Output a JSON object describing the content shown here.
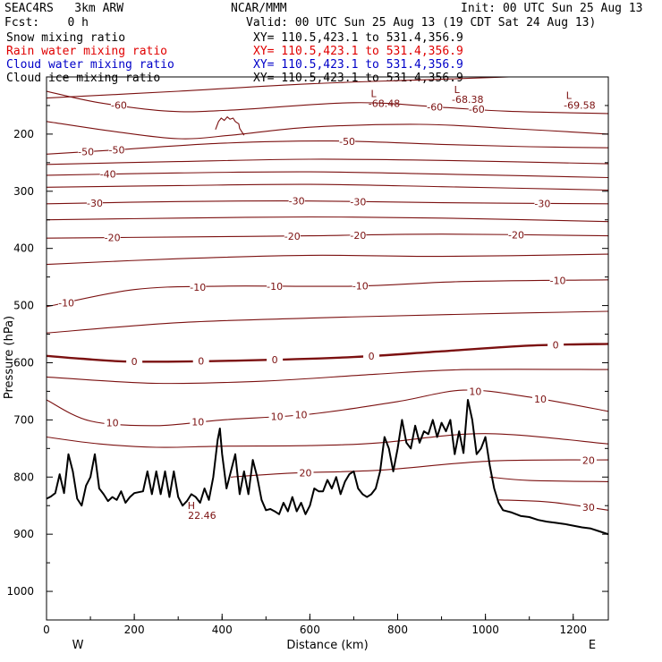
{
  "header": {
    "model": "SEAC4RS   3km ARW",
    "org": "NCAR/MMM",
    "init": "Init: 00 UTC Sun 25 Aug 13",
    "fcst": "Fcst:    0 h",
    "valid": "Valid: 00 UTC Sun 25 Aug 13 (19 CDT Sat 24 Aug 13)"
  },
  "legend": [
    {
      "label": "Snow mixing ratio",
      "xy": "XY= 110.5,423.1 to 531.4,356.9",
      "color": "#000000"
    },
    {
      "label": "Rain water mixing ratio",
      "xy": "XY= 110.5,423.1 to 531.4,356.9",
      "color": "#e00000"
    },
    {
      "label": "Cloud water mixing ratio",
      "xy": "XY= 110.5,423.1 to 531.4,356.9",
      "color": "#0000c8"
    },
    {
      "label": "Cloud ice mixing ratio",
      "xy": "XY= 110.5,423.1 to 531.4,356.9",
      "color": "#000000"
    }
  ],
  "chart_data": {
    "type": "line",
    "xlabel": "Distance (km)",
    "ylabel": "Pressure (hPa)",
    "xlim": [
      0,
      1280
    ],
    "ylim": [
      1050,
      100
    ],
    "xticks": [
      0,
      200,
      400,
      600,
      800,
      1000,
      1200
    ],
    "yticks": [
      200,
      300,
      400,
      500,
      600,
      700,
      800,
      900,
      1000
    ],
    "edge_labels": {
      "left": "W",
      "right": "E"
    },
    "contour_color": "#7b1010",
    "contour_interval": 5,
    "highs_lows": [
      {
        "symbol": "L",
        "value": "-68.48",
        "x": 745,
        "p": 135
      },
      {
        "symbol": "L",
        "value": "-68.38",
        "x": 935,
        "p": 128
      },
      {
        "symbol": "L",
        "value": "-69.58",
        "x": 1190,
        "p": 138
      },
      {
        "symbol": "H",
        "value": "22.46",
        "x": 330,
        "p": 856
      }
    ],
    "terrain": [
      [
        0,
        838
      ],
      [
        10,
        834
      ],
      [
        20,
        828
      ],
      [
        30,
        795
      ],
      [
        40,
        828
      ],
      [
        50,
        760
      ],
      [
        60,
        790
      ],
      [
        70,
        838
      ],
      [
        80,
        850
      ],
      [
        90,
        815
      ],
      [
        100,
        800
      ],
      [
        110,
        760
      ],
      [
        120,
        820
      ],
      [
        130,
        830
      ],
      [
        140,
        842
      ],
      [
        150,
        835
      ],
      [
        160,
        840
      ],
      [
        170,
        825
      ],
      [
        180,
        845
      ],
      [
        190,
        835
      ],
      [
        200,
        828
      ],
      [
        220,
        825
      ],
      [
        230,
        790
      ],
      [
        240,
        830
      ],
      [
        250,
        790
      ],
      [
        260,
        830
      ],
      [
        270,
        790
      ],
      [
        280,
        835
      ],
      [
        290,
        790
      ],
      [
        300,
        835
      ],
      [
        310,
        850
      ],
      [
        320,
        842
      ],
      [
        330,
        830
      ],
      [
        340,
        835
      ],
      [
        350,
        845
      ],
      [
        360,
        820
      ],
      [
        370,
        840
      ],
      [
        380,
        800
      ],
      [
        390,
        735
      ],
      [
        395,
        715
      ],
      [
        400,
        760
      ],
      [
        410,
        820
      ],
      [
        420,
        790
      ],
      [
        430,
        760
      ],
      [
        440,
        830
      ],
      [
        450,
        790
      ],
      [
        460,
        830
      ],
      [
        470,
        770
      ],
      [
        480,
        800
      ],
      [
        490,
        840
      ],
      [
        500,
        858
      ],
      [
        510,
        856
      ],
      [
        520,
        860
      ],
      [
        530,
        865
      ],
      [
        540,
        845
      ],
      [
        550,
        860
      ],
      [
        560,
        835
      ],
      [
        570,
        860
      ],
      [
        580,
        845
      ],
      [
        590,
        865
      ],
      [
        600,
        850
      ],
      [
        610,
        820
      ],
      [
        620,
        825
      ],
      [
        630,
        825
      ],
      [
        640,
        805
      ],
      [
        650,
        820
      ],
      [
        660,
        800
      ],
      [
        670,
        830
      ],
      [
        680,
        808
      ],
      [
        690,
        795
      ],
      [
        700,
        790
      ],
      [
        710,
        820
      ],
      [
        720,
        830
      ],
      [
        730,
        835
      ],
      [
        740,
        830
      ],
      [
        750,
        820
      ],
      [
        760,
        790
      ],
      [
        770,
        730
      ],
      [
        780,
        750
      ],
      [
        790,
        790
      ],
      [
        800,
        750
      ],
      [
        810,
        700
      ],
      [
        820,
        740
      ],
      [
        830,
        750
      ],
      [
        840,
        710
      ],
      [
        850,
        740
      ],
      [
        860,
        720
      ],
      [
        870,
        725
      ],
      [
        880,
        700
      ],
      [
        890,
        730
      ],
      [
        900,
        705
      ],
      [
        910,
        720
      ],
      [
        920,
        700
      ],
      [
        930,
        760
      ],
      [
        940,
        720
      ],
      [
        950,
        758
      ],
      [
        960,
        665
      ],
      [
        970,
        700
      ],
      [
        980,
        760
      ],
      [
        990,
        750
      ],
      [
        1000,
        730
      ],
      [
        1010,
        780
      ],
      [
        1020,
        820
      ],
      [
        1030,
        845
      ],
      [
        1040,
        858
      ],
      [
        1060,
        862
      ],
      [
        1080,
        868
      ],
      [
        1100,
        870
      ],
      [
        1120,
        875
      ],
      [
        1140,
        878
      ],
      [
        1160,
        880
      ],
      [
        1180,
        882
      ],
      [
        1200,
        885
      ],
      [
        1220,
        888
      ],
      [
        1240,
        890
      ],
      [
        1260,
        895
      ],
      [
        1280,
        900
      ]
    ],
    "bump": [
      [
        385,
        192
      ],
      [
        392,
        178
      ],
      [
        398,
        172
      ],
      [
        405,
        176
      ],
      [
        412,
        170
      ],
      [
        418,
        174
      ],
      [
        425,
        172
      ],
      [
        430,
        178
      ],
      [
        438,
        182
      ],
      [
        440,
        190
      ],
      [
        445,
        196
      ],
      [
        450,
        202
      ]
    ],
    "isotherms": [
      {
        "value": -65,
        "points": [
          [
            0,
            137
          ],
          [
            300,
            125
          ],
          [
            600,
            112
          ],
          [
            900,
            104
          ],
          [
            1280,
            94
          ]
        ],
        "labels": []
      },
      {
        "value": -60,
        "points": [
          [
            0,
            125
          ],
          [
            120,
            145
          ],
          [
            280,
            160
          ],
          [
            420,
            158
          ],
          [
            700,
            145
          ],
          [
            900,
            153
          ],
          [
            1050,
            160
          ],
          [
            1280,
            164
          ]
        ],
        "labels": [
          {
            "x": 165,
            "text": "-60"
          },
          {
            "x": 885,
            "text": "-60"
          },
          {
            "x": 980,
            "text": "-60"
          }
        ]
      },
      {
        "value": -55,
        "points": [
          [
            0,
            178
          ],
          [
            150,
            195
          ],
          [
            300,
            208
          ],
          [
            420,
            202
          ],
          [
            600,
            188
          ],
          [
            850,
            183
          ],
          [
            1050,
            190
          ],
          [
            1280,
            200
          ]
        ],
        "labels": []
      },
      {
        "value": -50,
        "points": [
          [
            0,
            235
          ],
          [
            150,
            228
          ],
          [
            400,
            216
          ],
          [
            650,
            212
          ],
          [
            900,
            218
          ],
          [
            1100,
            222
          ],
          [
            1280,
            224
          ]
        ],
        "labels": [
          {
            "x": 90,
            "text": "-50"
          },
          {
            "x": 160,
            "text": "-50"
          },
          {
            "x": 685,
            "text": "-50"
          }
        ]
      },
      {
        "value": -45,
        "points": [
          [
            0,
            253
          ],
          [
            300,
            248
          ],
          [
            600,
            244
          ],
          [
            900,
            246
          ],
          [
            1280,
            252
          ]
        ],
        "labels": []
      },
      {
        "value": -40,
        "points": [
          [
            0,
            272
          ],
          [
            300,
            268
          ],
          [
            600,
            266
          ],
          [
            900,
            270
          ],
          [
            1280,
            276
          ]
        ],
        "labels": [
          {
            "x": 140,
            "text": "-40"
          }
        ]
      },
      {
        "value": -35,
        "points": [
          [
            0,
            293
          ],
          [
            300,
            290
          ],
          [
            600,
            288
          ],
          [
            900,
            292
          ],
          [
            1280,
            298
          ]
        ],
        "labels": []
      },
      {
        "value": -30,
        "points": [
          [
            0,
            322
          ],
          [
            300,
            318
          ],
          [
            600,
            317
          ],
          [
            900,
            320
          ],
          [
            1280,
            322
          ]
        ],
        "labels": [
          {
            "x": 110,
            "text": "-30"
          },
          {
            "x": 570,
            "text": "-30"
          },
          {
            "x": 710,
            "text": "-30"
          },
          {
            "x": 1130,
            "text": "-30"
          }
        ]
      },
      {
        "value": -25,
        "points": [
          [
            0,
            350
          ],
          [
            300,
            347
          ],
          [
            600,
            345
          ],
          [
            900,
            347
          ],
          [
            1280,
            353
          ]
        ],
        "labels": []
      },
      {
        "value": -20,
        "points": [
          [
            0,
            382
          ],
          [
            300,
            380
          ],
          [
            600,
            378
          ],
          [
            900,
            375
          ],
          [
            1280,
            378
          ]
        ],
        "labels": [
          {
            "x": 150,
            "text": "-20"
          },
          {
            "x": 560,
            "text": "-20"
          },
          {
            "x": 710,
            "text": "-20"
          },
          {
            "x": 1070,
            "text": "-20"
          }
        ]
      },
      {
        "value": -15,
        "points": [
          [
            0,
            428
          ],
          [
            300,
            418
          ],
          [
            600,
            412
          ],
          [
            900,
            414
          ],
          [
            1280,
            410
          ]
        ],
        "labels": []
      },
      {
        "value": -10,
        "points": [
          [
            0,
            502
          ],
          [
            200,
            472
          ],
          [
            400,
            466
          ],
          [
            700,
            466
          ],
          [
            950,
            458
          ],
          [
            1280,
            455
          ]
        ],
        "labels": [
          {
            "x": 45,
            "text": "-10"
          },
          {
            "x": 345,
            "text": "-10"
          },
          {
            "x": 520,
            "text": "-10"
          },
          {
            "x": 715,
            "text": "-10"
          },
          {
            "x": 1165,
            "text": "-10"
          }
        ]
      },
      {
        "value": -5,
        "points": [
          [
            0,
            548
          ],
          [
            300,
            530
          ],
          [
            600,
            522
          ],
          [
            900,
            516
          ],
          [
            1280,
            510
          ]
        ],
        "labels": []
      },
      {
        "value": 0,
        "thick": true,
        "points": [
          [
            0,
            588
          ],
          [
            80,
            593
          ],
          [
            200,
            598
          ],
          [
            450,
            596
          ],
          [
            700,
            590
          ],
          [
            900,
            580
          ],
          [
            1100,
            570
          ],
          [
            1280,
            567
          ]
        ],
        "labels": [
          {
            "x": 200,
            "text": "0"
          },
          {
            "x": 352,
            "text": "0"
          },
          {
            "x": 520,
            "text": "0"
          },
          {
            "x": 740,
            "text": "0"
          },
          {
            "x": 1160,
            "text": "0"
          }
        ]
      },
      {
        "value": 5,
        "points": [
          [
            0,
            625
          ],
          [
            250,
            636
          ],
          [
            500,
            632
          ],
          [
            750,
            620
          ],
          [
            960,
            612
          ],
          [
            1280,
            612
          ]
        ],
        "labels": []
      },
      {
        "value": 10,
        "points": [
          [
            0,
            665
          ],
          [
            100,
            702
          ],
          [
            250,
            710
          ],
          [
            400,
            700
          ],
          [
            600,
            690
          ],
          [
            800,
            668
          ],
          [
            950,
            648
          ],
          [
            1100,
            660
          ],
          [
            1280,
            685
          ]
        ],
        "labels": [
          {
            "x": 150,
            "text": "10"
          },
          {
            "x": 345,
            "text": "10"
          },
          {
            "x": 525,
            "text": "10"
          },
          {
            "x": 580,
            "text": "10"
          },
          {
            "x": 977,
            "text": "10"
          },
          {
            "x": 1125,
            "text": "10"
          }
        ]
      },
      {
        "value": 15,
        "points": [
          [
            0,
            730
          ],
          [
            120,
            742
          ],
          [
            250,
            748
          ],
          [
            400,
            746
          ],
          [
            600,
            745
          ],
          [
            760,
            740
          ],
          [
            1000,
            724
          ],
          [
            1280,
            742
          ]
        ],
        "labels": []
      },
      {
        "value": 20,
        "points": [
          [
            420,
            800
          ],
          [
            560,
            793
          ],
          [
            760,
            788
          ],
          [
            1010,
            772
          ],
          [
            1280,
            770
          ]
        ],
        "labels": [
          {
            "x": 590,
            "text": "20"
          },
          {
            "x": 1235,
            "text": "20"
          }
        ]
      },
      {
        "value": 25,
        "points": [
          [
            1010,
            800
          ],
          [
            1100,
            806
          ],
          [
            1280,
            808
          ]
        ],
        "labels": []
      },
      {
        "value": 30,
        "points": [
          [
            1030,
            840
          ],
          [
            1150,
            844
          ],
          [
            1280,
            858
          ]
        ],
        "labels": [
          {
            "x": 1235,
            "text": "30"
          }
        ]
      }
    ]
  }
}
